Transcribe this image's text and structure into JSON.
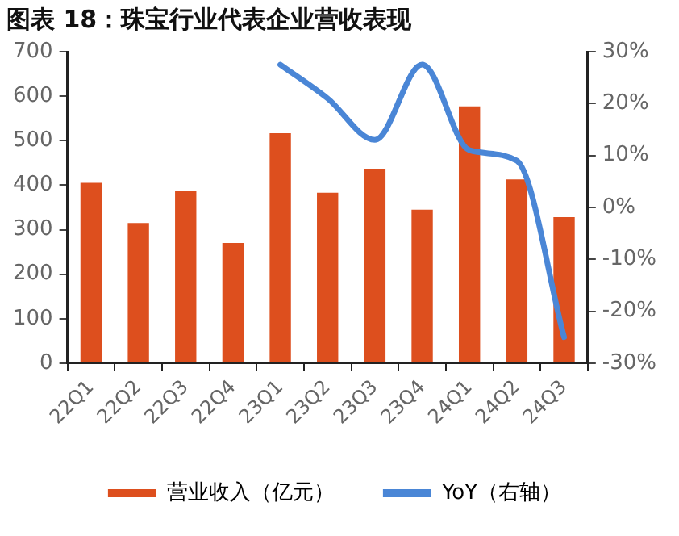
{
  "chart_data": {
    "type": "bar",
    "title": "图表 18：珠宝行业代表企业营收表现",
    "categories": [
      "22Q1",
      "22Q2",
      "22Q3",
      "22Q4",
      "23Q1",
      "23Q2",
      "23Q3",
      "23Q4",
      "24Q1",
      "24Q2",
      "24Q3"
    ],
    "series": [
      {
        "name": "营业收入（亿元）",
        "color": "#dd4f1e",
        "values": [
          405,
          315,
          387,
          270,
          517,
          383,
          437,
          345,
          577,
          413,
          328
        ]
      },
      {
        "name": "YoY（右轴）",
        "type": "line",
        "axis": "y2",
        "color": "#4a86d6",
        "values": [
          null,
          null,
          null,
          null,
          27.5,
          21,
          13,
          27.5,
          11,
          9,
          -25
        ]
      }
    ],
    "ylim": [
      0,
      700
    ],
    "yticks": [
      0,
      100,
      200,
      300,
      400,
      500,
      600,
      700
    ],
    "y2lim": [
      -30,
      30
    ],
    "y2ticks": [
      {
        "value": -30,
        "label": "-30%"
      },
      {
        "value": -20,
        "label": "-20%"
      },
      {
        "value": -10,
        "label": "-10%"
      },
      {
        "value": 0,
        "label": "0%"
      },
      {
        "value": 10,
        "label": "10%"
      },
      {
        "value": 20,
        "label": "20%"
      },
      {
        "value": 30,
        "label": "30%"
      }
    ],
    "grid": false,
    "legend": "bottom",
    "marker": "none"
  }
}
